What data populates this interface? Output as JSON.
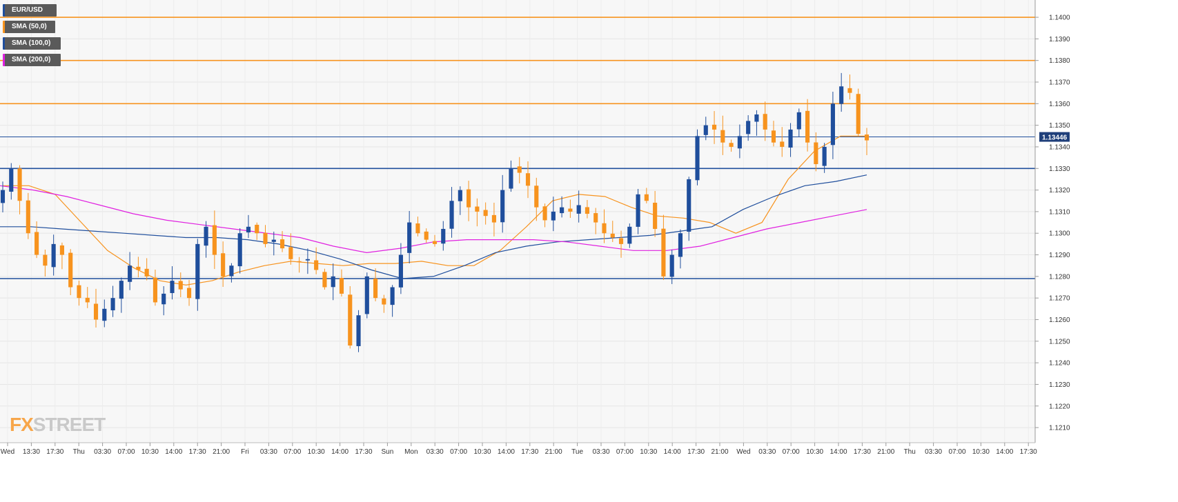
{
  "legend": {
    "items": [
      {
        "label": "EUR/USD",
        "color": "#1f4e9c"
      },
      {
        "label": "SMA (50,0)",
        "color": "#f7931e"
      },
      {
        "label": "SMA (100,0)",
        "color": "#1f4e9c"
      },
      {
        "label": "SMA (200,0)",
        "color": "#e020e0"
      }
    ]
  },
  "brand": {
    "prefix": "FX",
    "suffix": "STREET"
  },
  "current_price": "1.13446",
  "colors": {
    "bull": "#1f4e9c",
    "bear": "#f7931e",
    "resistance": "#f7931e",
    "support": "#1f4e9c",
    "sma50": "#f7931e",
    "sma100": "#1f4e9c",
    "sma200": "#e020e0"
  },
  "chart_data": {
    "type": "candlestick",
    "symbol": "EUR/USD",
    "ylim": [
      1.1203,
      1.1408
    ],
    "y_ticks": [
      "1.1210",
      "1.1220",
      "1.1230",
      "1.1240",
      "1.1250",
      "1.1260",
      "1.1270",
      "1.1280",
      "1.1290",
      "1.1300",
      "1.1310",
      "1.1320",
      "1.1330",
      "1.1340",
      "1.1350",
      "1.1360",
      "1.1370",
      "1.1380",
      "1.1390",
      "1.1400"
    ],
    "x_ticks": [
      "Wed",
      "13:30",
      "17:30",
      "Thu",
      "03:30",
      "07:00",
      "10:30",
      "14:00",
      "17:30",
      "21:00",
      "Fri",
      "03:30",
      "07:00",
      "10:30",
      "14:00",
      "17:30",
      "Sun",
      "Mon",
      "03:30",
      "07:00",
      "10:30",
      "14:00",
      "17:30",
      "21:00",
      "Tue",
      "03:30",
      "07:00",
      "10:30",
      "14:00",
      "17:30",
      "21:00",
      "Wed",
      "03:30",
      "07:00",
      "10:30",
      "14:00",
      "17:30",
      "21:00",
      "Thu",
      "03:30",
      "07:00",
      "10:30",
      "14:00",
      "17:30"
    ],
    "horizontal_levels": [
      {
        "value": 1.14,
        "kind": "resistance"
      },
      {
        "value": 1.138,
        "kind": "resistance"
      },
      {
        "value": 1.136,
        "kind": "resistance"
      },
      {
        "value": 1.13446,
        "kind": "current"
      },
      {
        "value": 1.133,
        "kind": "support"
      },
      {
        "value": 1.1279,
        "kind": "support"
      }
    ],
    "close_path": [
      1.132,
      1.133,
      1.1315,
      1.13,
      1.129,
      1.1285,
      1.1295,
      1.129,
      1.1275,
      1.127,
      1.1268,
      1.126,
      1.1265,
      1.127,
      1.1278,
      1.1285,
      1.1283,
      1.128,
      1.1268,
      1.1272,
      1.1278,
      1.1274,
      1.127,
      1.1295,
      1.1303,
      1.129,
      1.128,
      1.1285,
      1.13,
      1.1303,
      1.13,
      1.1295,
      1.1297,
      1.1293,
      1.1288,
      1.1287,
      1.1288,
      1.1283,
      1.1275,
      1.128,
      1.1272,
      1.1248,
      1.1262,
      1.128,
      1.127,
      1.1267,
      1.1275,
      1.129,
      1.1305,
      1.13,
      1.1297,
      1.1295,
      1.1302,
      1.1315,
      1.132,
      1.1312,
      1.131,
      1.1308,
      1.1305,
      1.132,
      1.133,
      1.1328,
      1.1322,
      1.1312,
      1.1306,
      1.131,
      1.1312,
      1.131,
      1.1313,
      1.1309,
      1.1305,
      1.13,
      1.1298,
      1.1295,
      1.1303,
      1.1318,
      1.1315,
      1.1302,
      1.128,
      1.129,
      1.13,
      1.1325,
      1.1345,
      1.135,
      1.1348,
      1.1342,
      1.134,
      1.1345,
      1.1352,
      1.1355,
      1.1348,
      1.1342,
      1.134,
      1.1348,
      1.1356,
      1.1342,
      1.1332,
      1.134,
      1.136,
      1.1368,
      1.1365,
      1.1346,
      1.1343
    ],
    "series": [
      {
        "name": "SMA (50,0)",
        "values": [
          1.1322,
          1.1322,
          1.1318,
          1.1305,
          1.1292,
          1.1284,
          1.1278,
          1.1276,
          1.1278,
          1.1282,
          1.1285,
          1.1287,
          1.1286,
          1.1285,
          1.1286,
          1.1286,
          1.1287,
          1.1285,
          1.1285,
          1.1292,
          1.1303,
          1.1315,
          1.1318,
          1.1317,
          1.1312,
          1.1308,
          1.1307,
          1.1305,
          1.13,
          1.1305,
          1.1325,
          1.1338,
          1.1345,
          1.1345
        ]
      },
      {
        "name": "SMA (100,0)",
        "values": [
          1.1303,
          1.1303,
          1.1302,
          1.1301,
          1.13,
          1.1299,
          1.1298,
          1.1298,
          1.1297,
          1.1295,
          1.1292,
          1.1288,
          1.1283,
          1.1279,
          1.128,
          1.1285,
          1.1291,
          1.1294,
          1.1296,
          1.1297,
          1.1298,
          1.1299,
          1.1301,
          1.1303,
          1.1311,
          1.1317,
          1.1322,
          1.1324,
          1.1327
        ]
      },
      {
        "name": "SMA (200,0)",
        "values": [
          1.1322,
          1.132,
          1.1317,
          1.1313,
          1.1309,
          1.1306,
          1.1304,
          1.1302,
          1.13,
          1.1298,
          1.1294,
          1.1291,
          1.1293,
          1.1296,
          1.1297,
          1.1297,
          1.1297,
          1.1296,
          1.1294,
          1.1292,
          1.1292,
          1.1294,
          1.1298,
          1.1302,
          1.1305,
          1.1308,
          1.1311
        ]
      }
    ]
  }
}
